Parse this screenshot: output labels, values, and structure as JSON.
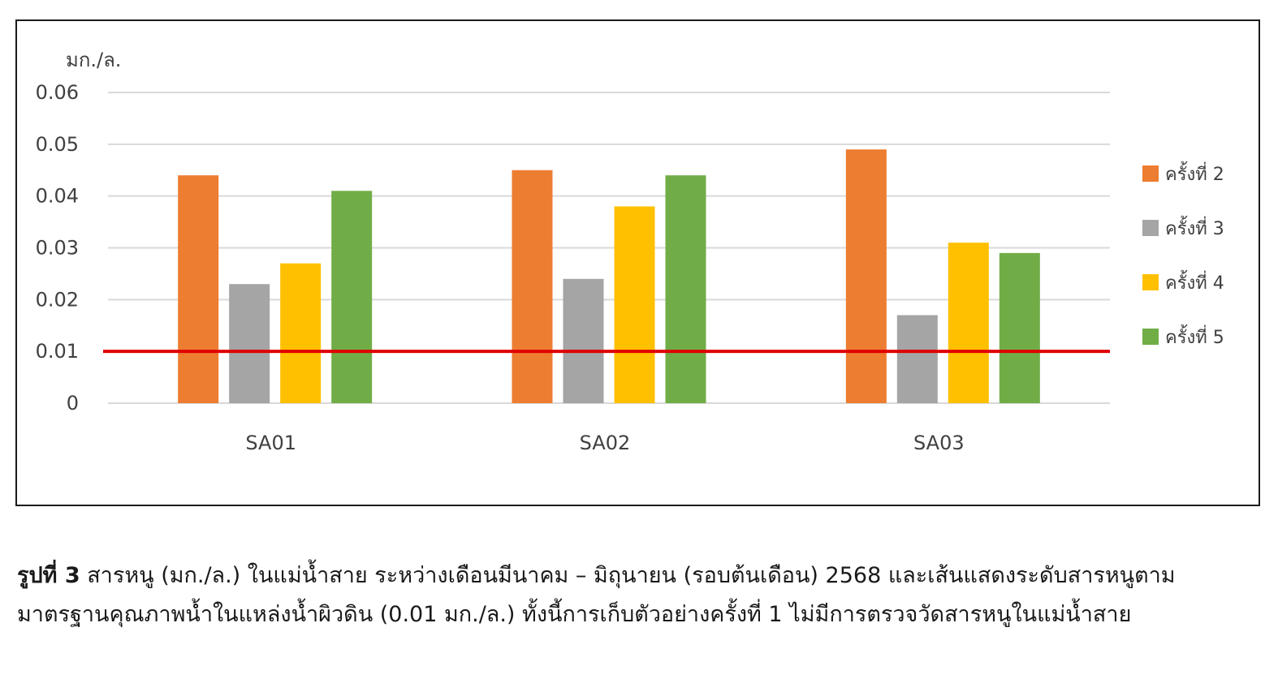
{
  "chart_data": {
    "type": "bar",
    "unit_label": "มก./ล.",
    "categories": [
      "SA01",
      "SA02",
      "SA03"
    ],
    "series": [
      {
        "name": "ครั้งที่ 2",
        "color": "#ED7D31",
        "values": [
          0.044,
          0.045,
          0.049
        ]
      },
      {
        "name": "ครั้งที่ 3",
        "color": "#A5A5A5",
        "values": [
          0.023,
          0.024,
          0.017
        ]
      },
      {
        "name": "ครั้งที่ 4",
        "color": "#FFC000",
        "values": [
          0.027,
          0.038,
          0.031
        ]
      },
      {
        "name": "ครั้งที่ 5",
        "color": "#70AD47",
        "values": [
          0.041,
          0.044,
          0.029
        ]
      }
    ],
    "ylim": [
      0,
      0.06
    ],
    "yticks": [
      "0",
      "0.01",
      "0.02",
      "0.03",
      "0.04",
      "0.05",
      "0.06"
    ],
    "reference_line": {
      "value": 0.01,
      "color": "#E00000"
    },
    "grid": true,
    "legend_position": "right"
  },
  "caption": {
    "prefix": "รูปที่ 3",
    "line1": " สารหนู (มก./ล.) ในแม่น้ำสาย ระหว่างเดือนมีนาคม – มิถุนายน (รอบต้นเดือน) 2568 และเส้นแสดงระดับสารหนูตาม",
    "line2": "มาตรฐานคุณภาพน้ำในแหล่งน้ำผิวดิน (0.01 มก./ล.) ทั้งนี้การเก็บตัวอย่างครั้งที่ 1 ไม่มีการตรวจวัดสารหนูในแม่น้ำสาย"
  }
}
